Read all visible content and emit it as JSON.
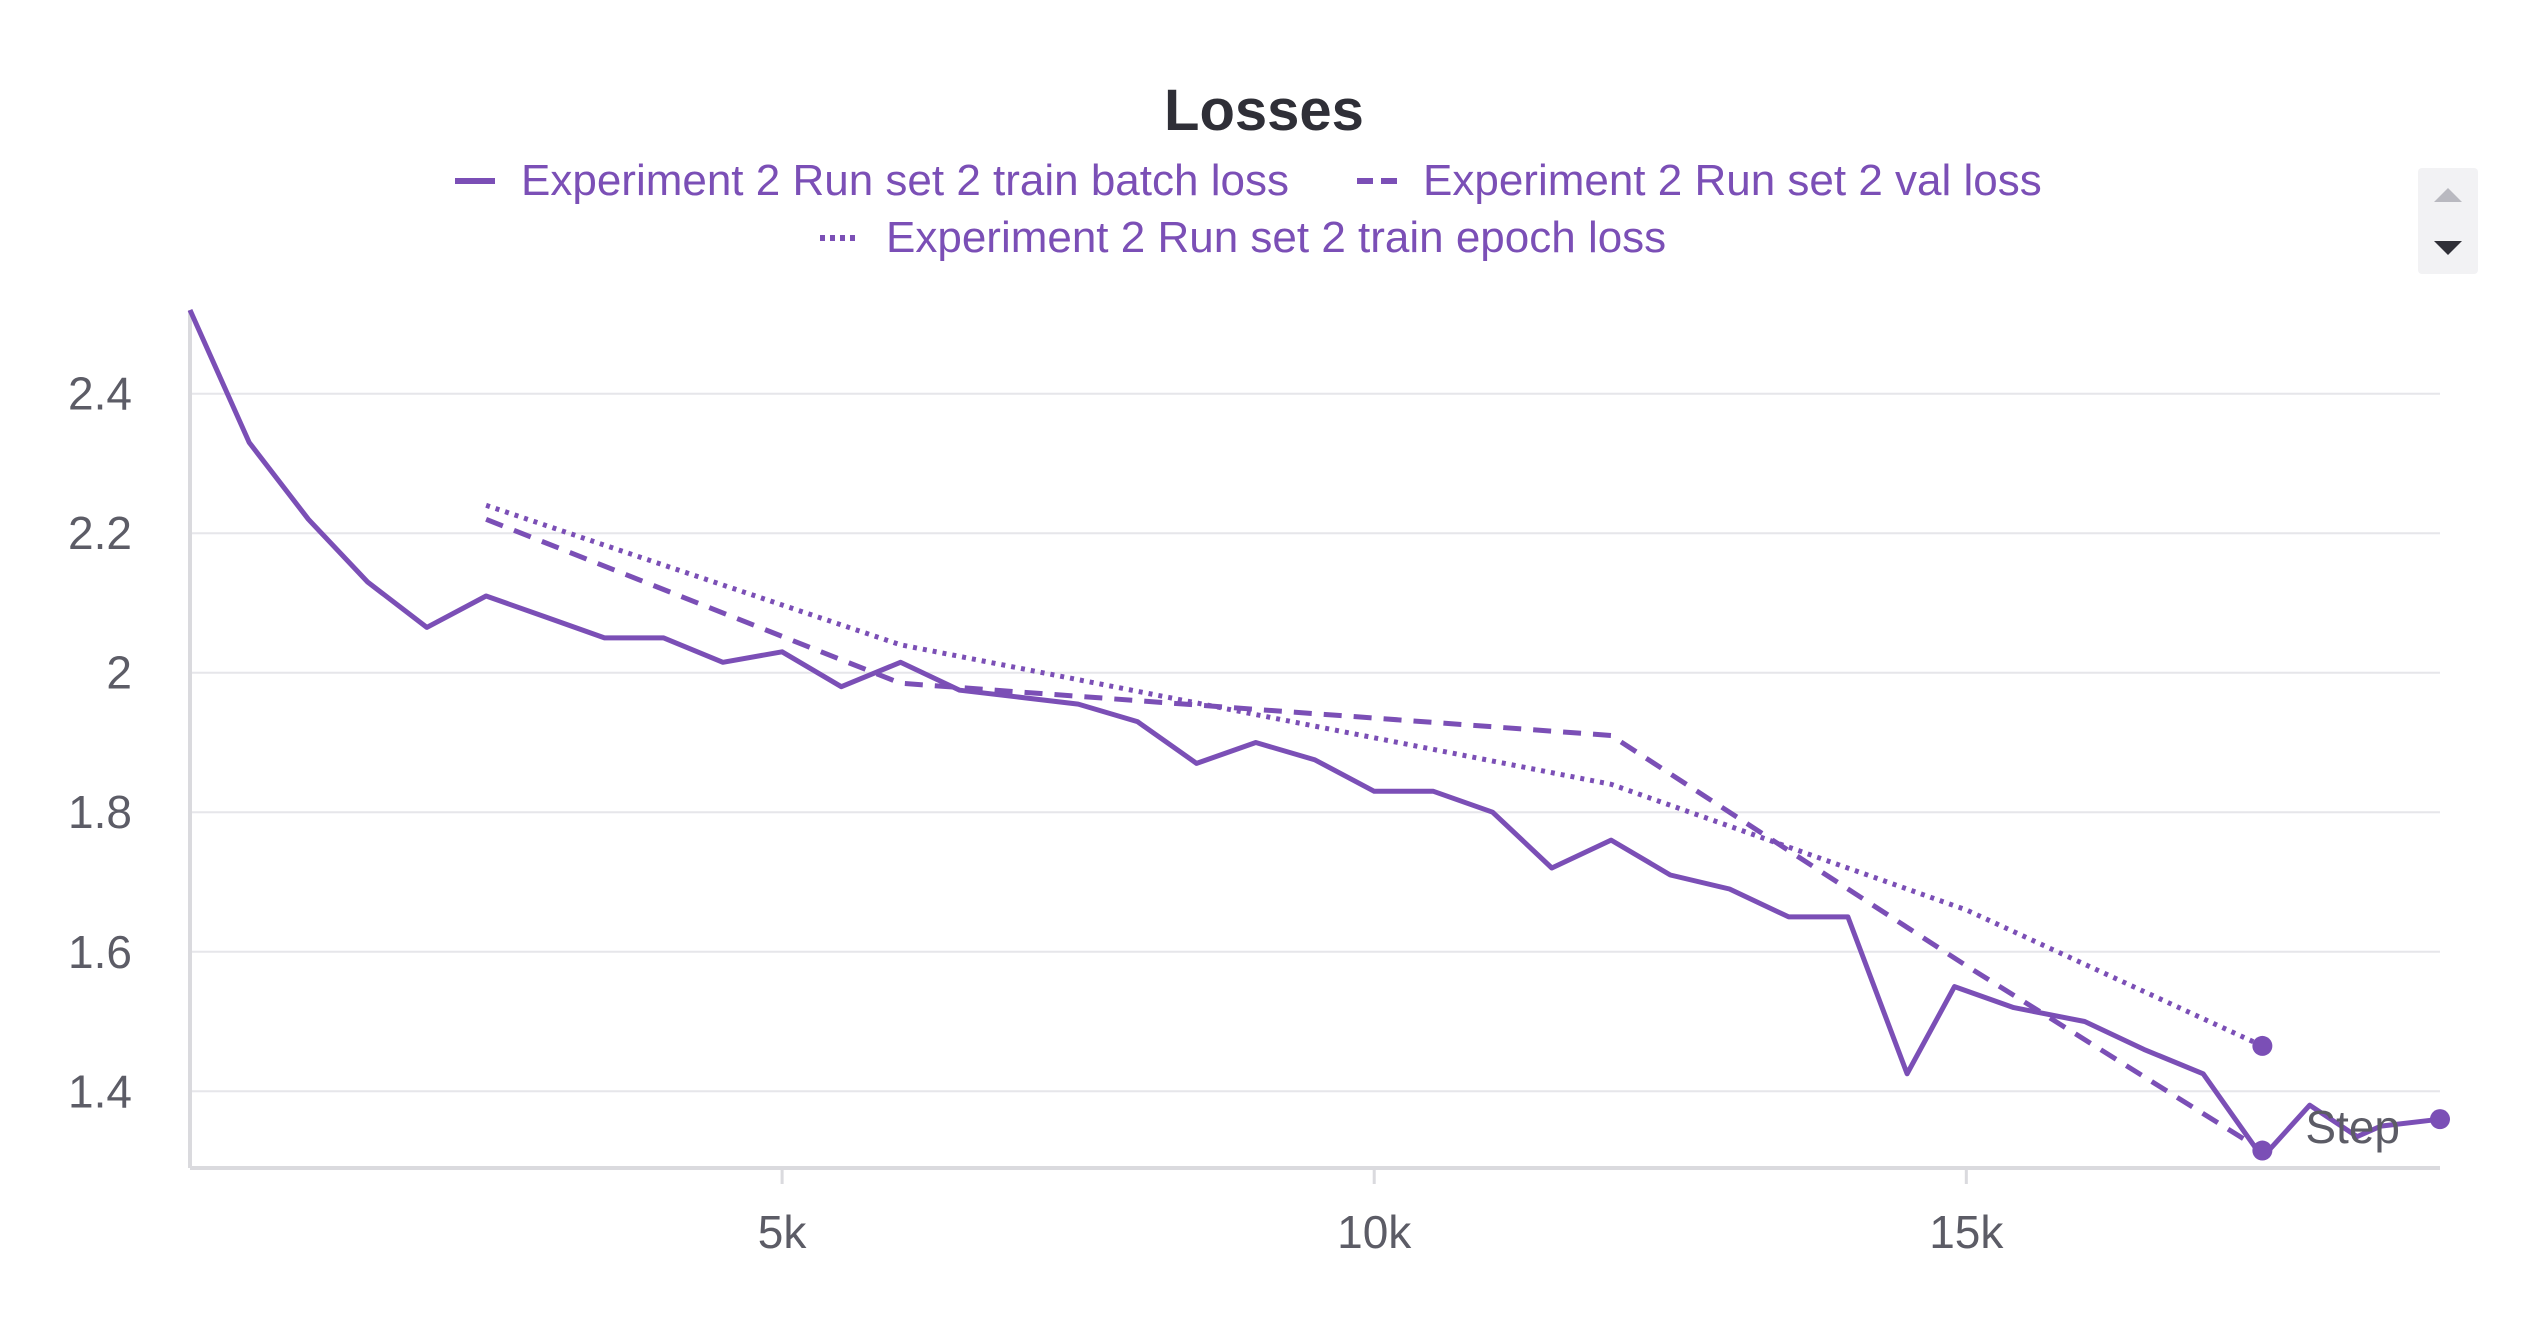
{
  "chart_data": {
    "type": "line",
    "title": "Losses",
    "xlabel": "Step",
    "ylabel": "",
    "xlim": [
      0,
      19000
    ],
    "ylim": [
      1.29,
      2.52
    ],
    "xticks": [
      5000,
      10000,
      15000
    ],
    "xtick_labels": [
      "5k",
      "10k",
      "15k"
    ],
    "yticks": [
      1.4,
      1.6,
      1.8,
      2.0,
      2.2,
      2.4
    ],
    "ytick_labels": [
      "1.4",
      "1.6",
      "1.8",
      "2",
      "2.2",
      "2.4"
    ],
    "grid": true,
    "legend_position": "top-center",
    "series": [
      {
        "name": "Experiment 2 Run set 2 train batch loss",
        "style": "solid",
        "color": "#7b4fb6",
        "x": [
          0,
          500,
          1000,
          1500,
          2000,
          2500,
          3000,
          3500,
          4000,
          4500,
          5000,
          5500,
          6000,
          6500,
          7000,
          7500,
          8000,
          8500,
          9000,
          9500,
          10000,
          10500,
          11000,
          11500,
          12000,
          12500,
          13000,
          13500,
          14000,
          14500,
          14900,
          15400,
          16000,
          16500,
          17000,
          17500,
          17900,
          18300,
          18500,
          19000
        ],
        "y": [
          2.52,
          2.33,
          2.22,
          2.13,
          2.065,
          2.11,
          2.08,
          2.05,
          2.05,
          2.015,
          2.03,
          1.98,
          2.015,
          1.975,
          1.965,
          1.955,
          1.93,
          1.87,
          1.9,
          1.875,
          1.83,
          1.83,
          1.8,
          1.72,
          1.76,
          1.71,
          1.69,
          1.65,
          1.65,
          1.425,
          1.55,
          1.52,
          1.5,
          1.46,
          1.425,
          1.305,
          1.38,
          1.335,
          1.35,
          1.36
        ]
      },
      {
        "name": "Experiment 2 Run set 2 val loss",
        "style": "dashed",
        "color": "#7b4fb6",
        "x": [
          2500,
          6000,
          12000,
          15000,
          17500
        ],
        "y": [
          2.22,
          1.985,
          1.91,
          1.58,
          1.315
        ]
      },
      {
        "name": "Experiment 2 Run set 2 train epoch loss",
        "style": "dotted",
        "color": "#7b4fb6",
        "x": [
          2500,
          6000,
          12000,
          15000,
          17500
        ],
        "y": [
          2.24,
          2.04,
          1.84,
          1.66,
          1.465
        ]
      }
    ]
  },
  "colors": {
    "series": "#7b4fb6",
    "grid": "#e6e6ea",
    "axis": "#dadade",
    "text": "#5c5c66",
    "title": "#2f2f37"
  },
  "controls": {
    "scroll_up_icon": "triangle-up-icon",
    "scroll_down_icon": "triangle-down-icon"
  }
}
